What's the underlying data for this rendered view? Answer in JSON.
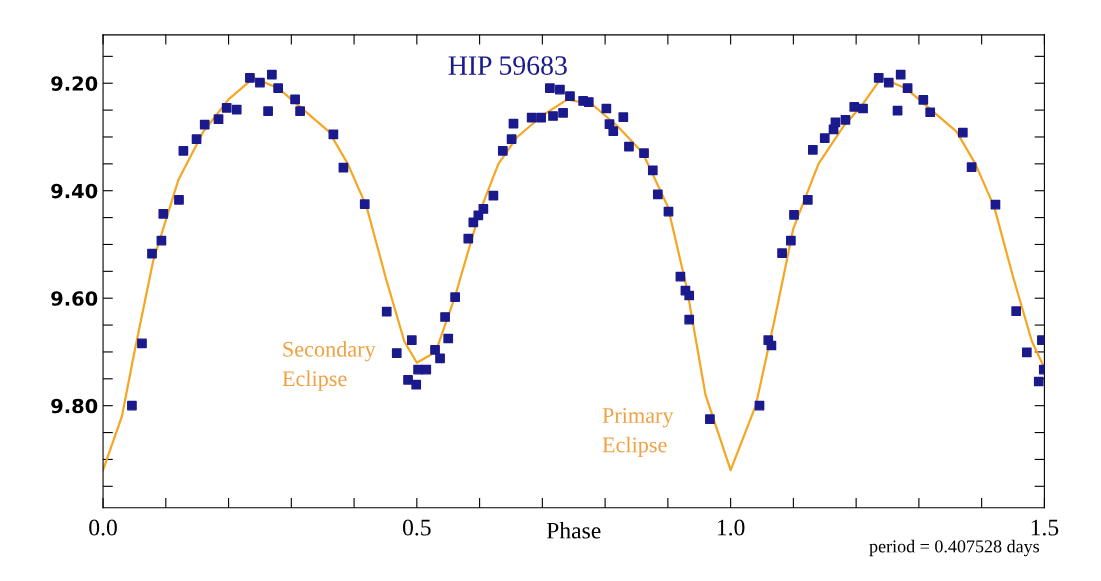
{
  "chart_data": {
    "type": "scatter",
    "title": "HIP 59683",
    "xlabel": "Phase",
    "annotations": [
      "Secondary\nEclipse",
      "Primary\nEclipse",
      "period = 0.407528 days"
    ],
    "xlim": [
      0.0,
      1.5
    ],
    "ylim": [
      9.99,
      9.11
    ],
    "xticks": [
      {
        "value": 0.0,
        "label": "0.0"
      },
      {
        "value": 0.1,
        "label": null
      },
      {
        "value": 0.2,
        "label": null
      },
      {
        "value": 0.3,
        "label": null
      },
      {
        "value": 0.4,
        "label": null
      },
      0.5,
      {
        "value": 0.6,
        "label": null
      },
      {
        "value": 0.7,
        "label": null
      },
      {
        "value": 0.8,
        "label": null
      },
      {
        "value": 0.9,
        "label": null
      },
      {
        "value": 1.0,
        "label": "1.0"
      },
      {
        "value": 1.1,
        "label": null
      },
      {
        "value": 1.2,
        "label": null
      },
      {
        "value": 1.3,
        "label": null
      },
      {
        "value": 1.4,
        "label": null
      },
      1.5
    ],
    "yticks": [
      {
        "value": 9.15,
        "label": null
      },
      {
        "value": 9.2,
        "label": "9.20"
      },
      {
        "value": 9.25,
        "label": null
      },
      {
        "value": 9.3,
        "label": null
      },
      {
        "value": 9.35,
        "label": null
      },
      {
        "value": 9.4,
        "label": "9.40"
      },
      {
        "value": 9.45,
        "label": null
      },
      {
        "value": 9.5,
        "label": null
      },
      {
        "value": 9.55,
        "label": null
      },
      {
        "value": 9.6,
        "label": "9.60"
      },
      {
        "value": 9.65,
        "label": null
      },
      {
        "value": 9.7,
        "label": null
      },
      {
        "value": 9.75,
        "label": null
      },
      {
        "value": 9.8,
        "label": "9.80"
      },
      {
        "value": 9.85,
        "label": null
      },
      {
        "value": 9.9,
        "label": null
      },
      {
        "value": 9.95,
        "label": null
      }
    ],
    "grid": false,
    "legend": false,
    "series": [
      {
        "type": "line",
        "color": "#f5a623",
        "marker": "none",
        "line_style": "solid",
        "x": [
          0.0,
          0.03,
          0.05,
          0.08,
          0.12,
          0.16,
          0.2,
          0.24,
          0.28,
          0.32,
          0.36,
          0.39,
          0.42,
          0.45,
          0.48,
          0.5,
          0.53,
          0.56,
          0.6,
          0.63,
          0.66,
          0.7,
          0.74,
          0.78,
          0.82,
          0.86,
          0.9,
          0.93,
          0.96,
          1.0,
          1.04,
          1.07,
          1.1,
          1.14,
          1.18,
          1.21,
          1.24,
          1.28,
          1.32,
          1.36,
          1.39,
          1.42,
          1.45,
          1.48,
          1.5
        ],
        "values": [
          9.92,
          9.82,
          9.7,
          9.53,
          9.38,
          9.29,
          9.23,
          9.19,
          9.21,
          9.25,
          9.29,
          9.35,
          9.43,
          9.56,
          9.68,
          9.72,
          9.7,
          9.6,
          9.44,
          9.35,
          9.3,
          9.26,
          9.23,
          9.24,
          9.28,
          9.33,
          9.43,
          9.58,
          9.78,
          9.92,
          9.8,
          9.64,
          9.47,
          9.35,
          9.28,
          9.24,
          9.19,
          9.21,
          9.25,
          9.29,
          9.35,
          9.43,
          9.56,
          9.68,
          9.73
        ]
      },
      {
        "color": "#1a1a8c",
        "marker": "square",
        "x": [
          0.046,
          0.062,
          0.078,
          0.093,
          0.096,
          0.121,
          0.128,
          0.149,
          0.162,
          0.184,
          0.197,
          0.213,
          0.234,
          0.25,
          0.263,
          0.269,
          0.279,
          0.306,
          0.314,
          0.367,
          0.383,
          0.417,
          0.452,
          0.468,
          0.492,
          0.486,
          0.499,
          0.502,
          0.515,
          0.529,
          0.537,
          0.55,
          0.545,
          0.561,
          0.582,
          0.59,
          0.598,
          0.606,
          0.622,
          0.637,
          0.651,
          0.654,
          0.683,
          0.698,
          0.717,
          0.733,
          0.712,
          0.728,
          0.744,
          0.765,
          0.774,
          0.802,
          0.807,
          0.813,
          0.829,
          0.838,
          0.862,
          0.876,
          0.884,
          0.901,
          0.92,
          0.928,
          0.934,
          0.934,
          0.967,
          1.046,
          1.06,
          1.065,
          1.082,
          1.096,
          1.101,
          1.123,
          1.131,
          1.15,
          1.164,
          1.167,
          1.183,
          1.197,
          1.211,
          1.236,
          1.252,
          1.266,
          1.271,
          1.282,
          1.307,
          1.318,
          1.37,
          1.384,
          1.422,
          1.455,
          1.472,
          1.496,
          1.491,
          1.499
        ],
        "values": [
          9.8,
          9.684,
          9.517,
          9.493,
          9.443,
          9.417,
          9.326,
          9.304,
          9.277,
          9.267,
          9.246,
          9.249,
          9.19,
          9.199,
          9.252,
          9.184,
          9.209,
          9.23,
          9.252,
          9.295,
          9.357,
          9.425,
          9.625,
          9.702,
          9.678,
          9.752,
          9.761,
          9.733,
          9.733,
          9.696,
          9.712,
          9.675,
          9.635,
          9.598,
          9.489,
          9.459,
          9.446,
          9.434,
          9.409,
          9.326,
          9.304,
          9.275,
          9.264,
          9.264,
          9.261,
          9.255,
          9.209,
          9.212,
          9.224,
          9.233,
          9.235,
          9.247,
          9.276,
          9.289,
          9.263,
          9.318,
          9.33,
          9.362,
          9.407,
          9.439,
          9.56,
          9.586,
          9.595,
          9.64,
          9.825,
          9.8,
          9.678,
          9.688,
          9.516,
          9.493,
          9.445,
          9.417,
          9.324,
          9.302,
          9.286,
          9.273,
          9.268,
          9.244,
          9.247,
          9.19,
          9.199,
          9.251,
          9.184,
          9.209,
          9.231,
          9.254,
          9.292,
          9.356,
          9.426,
          9.624,
          9.701,
          9.678,
          9.755,
          9.733
        ]
      }
    ]
  }
}
